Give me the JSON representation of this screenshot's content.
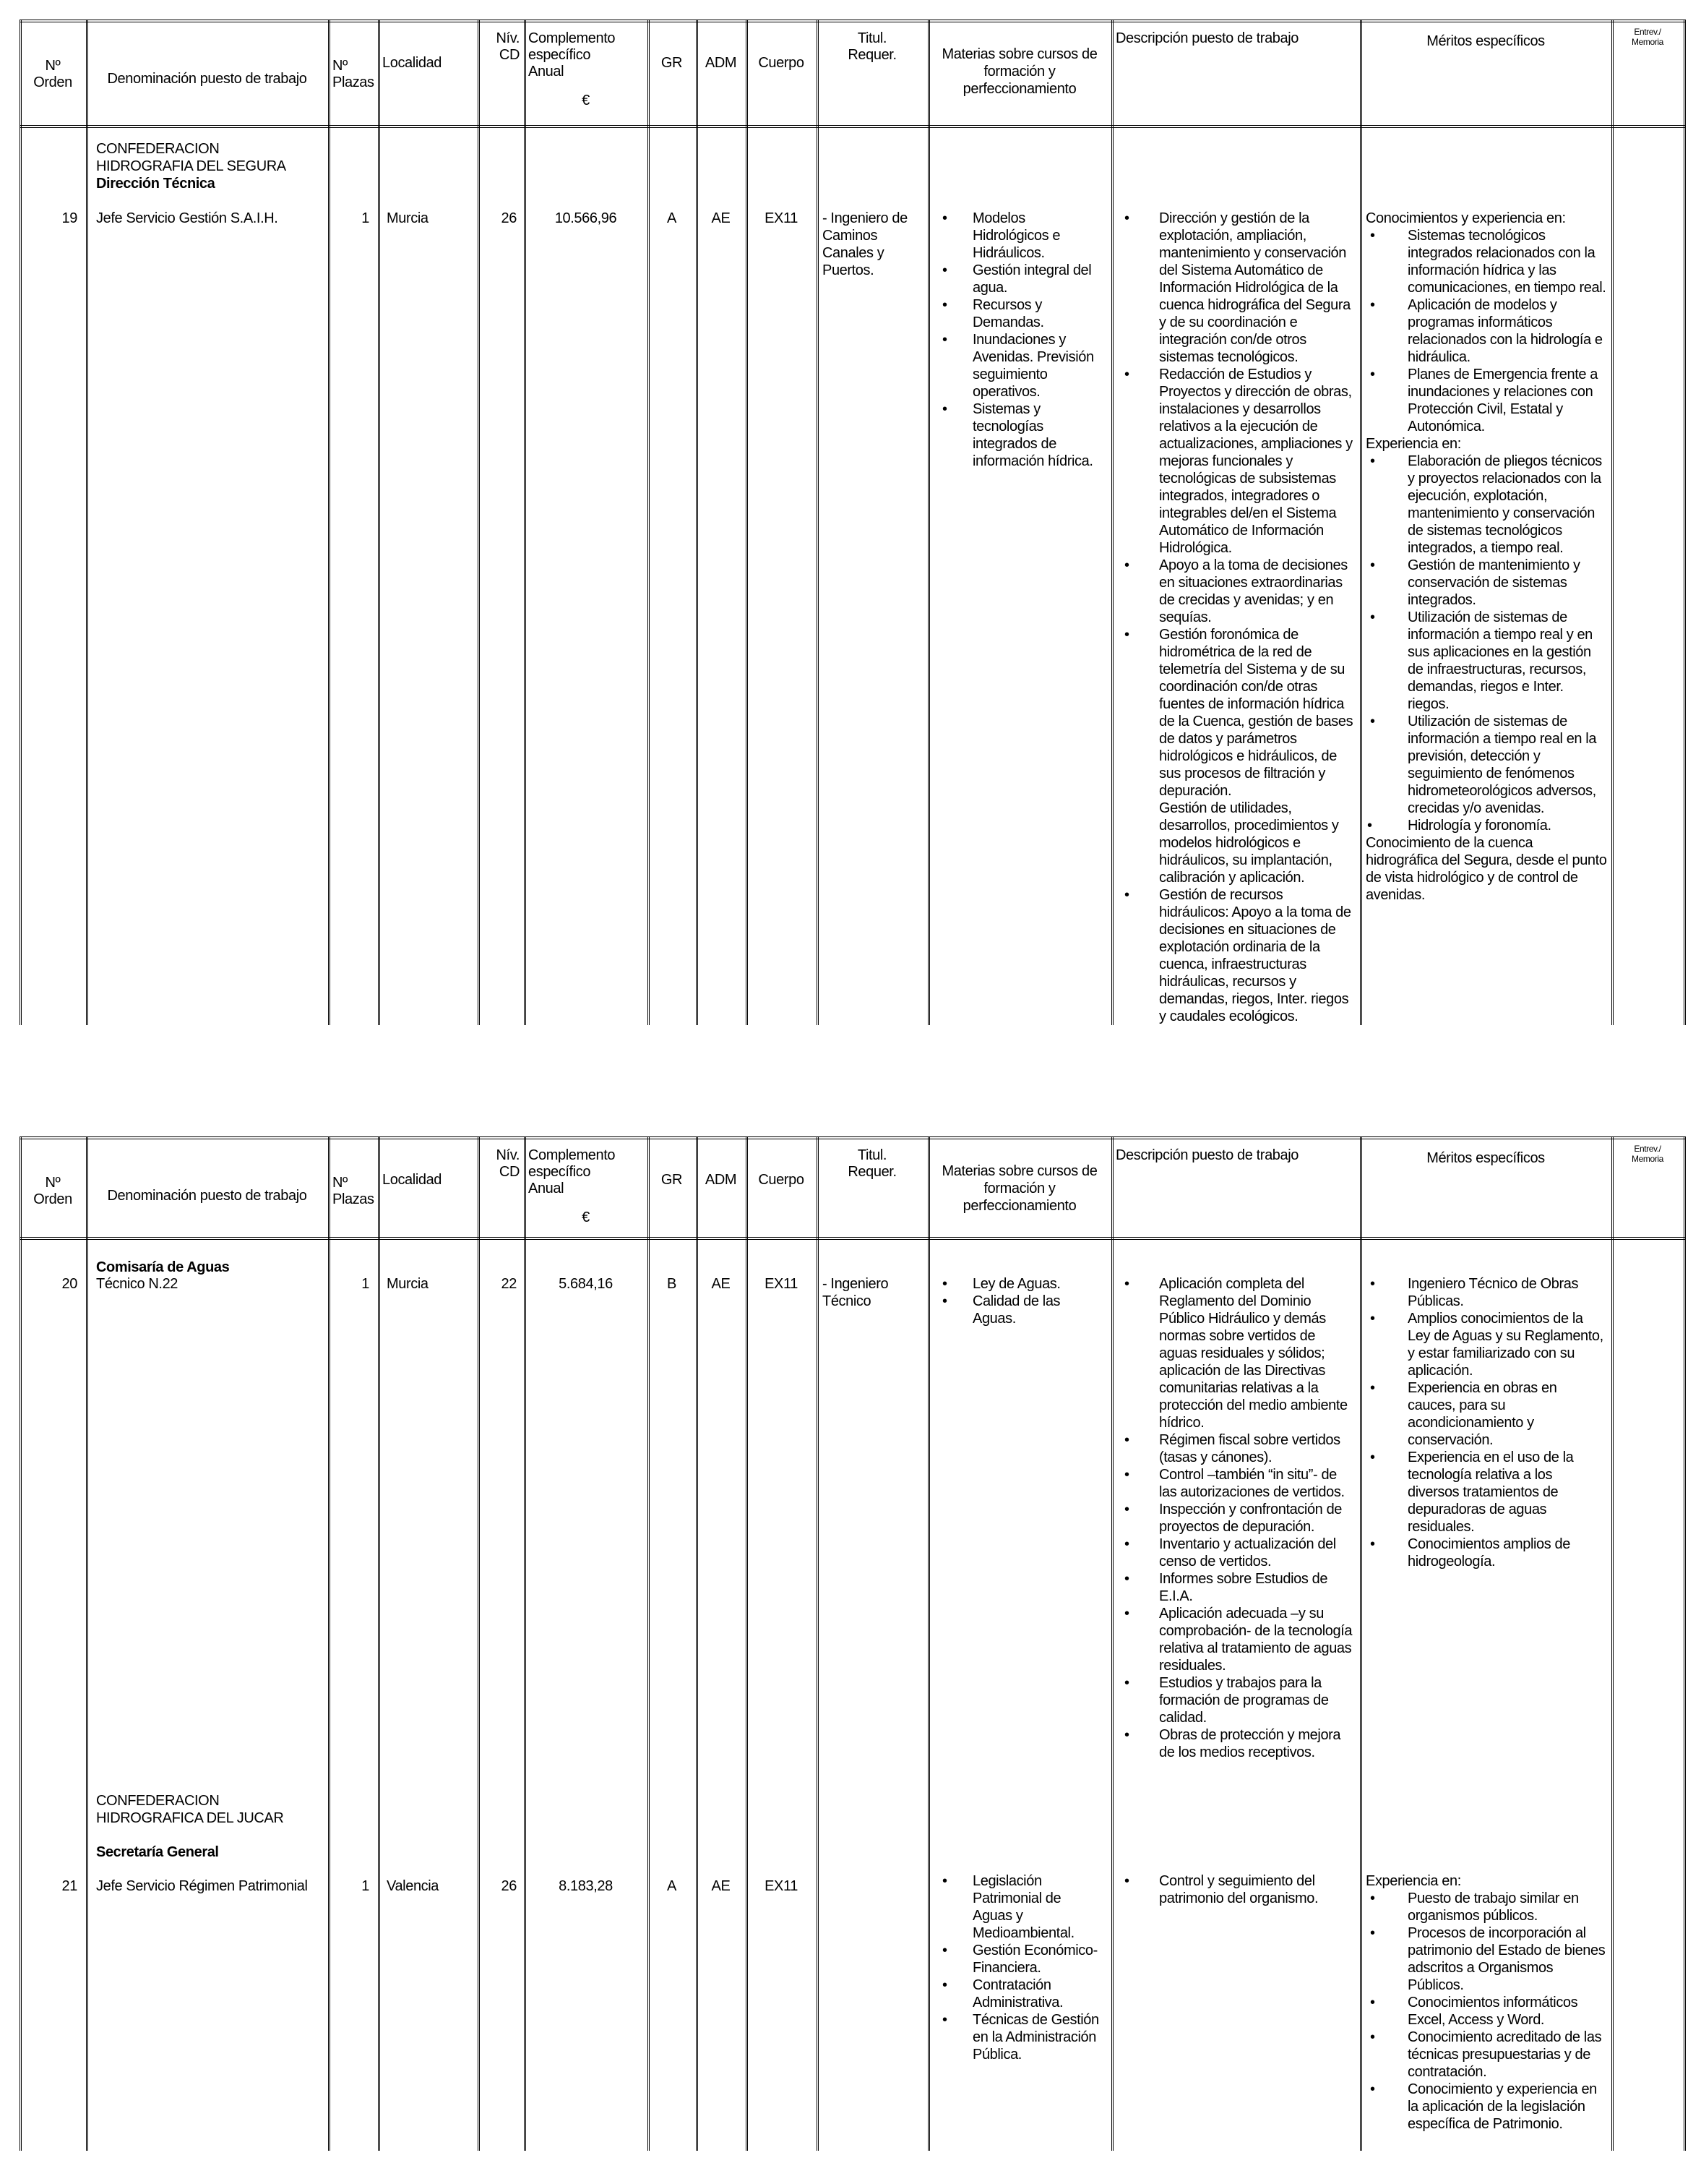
{
  "header": {
    "orden": [
      "Nº",
      "Orden"
    ],
    "denominacion": "Denominación puesto de trabajo",
    "plazas": [
      "Nº",
      "Plazas"
    ],
    "localidad": "Localidad",
    "nivel_cd": [
      "Nív.",
      "CD"
    ],
    "complemento": [
      "Complemento",
      "específico",
      "Anual"
    ],
    "complemento_unit": "€",
    "gr": "GR",
    "adm": "ADM",
    "cuerpo": "Cuerpo",
    "titulacion": [
      "Titul.",
      "Requer."
    ],
    "materias": "Materias sobre cursos de formación y perfeccionamiento",
    "descripcion": "Descripción puesto de trabajo",
    "meritos": "Méritos específicos",
    "entrevista": [
      "Entrev./",
      "Memoria"
    ]
  },
  "tables": [
    {
      "rows": [
        {
          "organization": [
            "CONFEDERACION",
            "HIDROGRAFIA DEL SEGURA"
          ],
          "unit": "Dirección Técnica",
          "orden": "19",
          "denominacion": "Jefe Servicio Gestión  S.A.I.H.",
          "plazas": "1",
          "localidad": "Murcia",
          "nivel_cd": "26",
          "complemento": "10.566,96",
          "gr": "A",
          "adm": "AE",
          "cuerpo": "EX11",
          "titulacion": "- Ingeniero de Caminos Canales y Puertos.",
          "materias": [
            {
              "type": "bullet",
              "text": "Modelos Hidrológicos e Hidráulicos."
            },
            {
              "type": "bullet",
              "text": "Gestión integral del agua."
            },
            {
              "type": "bullet",
              "text": "Recursos y Demandas."
            },
            {
              "type": "bullet",
              "text": "Inundaciones y Avenidas. Previsión seguimiento operativos."
            },
            {
              "type": "bullet",
              "text": "Sistemas y tecnologías integrados de información hídrica."
            }
          ],
          "descripcion": [
            {
              "type": "bullet",
              "text": "Dirección y gestión de la explotación, ampliación, mantenimiento y conservación del Sistema Automático de Información Hidrológica de la cuenca hidrográfica del Segura y de su coordinación e integración con/de otros sistemas tecnológicos."
            },
            {
              "type": "bullet",
              "text": "Redacción de Estudios y Proyectos y dirección de obras, instalaciones y desarrollos relativos a la ejecución de actualizaciones, ampliaciones y mejoras funcionales y tecnológicas de subsistemas integrados, integradores o integrables del/en el Sistema Automático de Información Hidrológica."
            },
            {
              "type": "bullet",
              "text": "Apoyo a la toma de decisiones en situaciones extraordinarias de crecidas y avenidas; y en sequías."
            },
            {
              "type": "bullet",
              "text": "Gestión foronómica de hidrométrica de la red de telemetría del Sistema y de su coordinación con/de otras fuentes de información hídrica de la Cuenca, gestión de bases de datos y parámetros hidrológicos e hidráulicos, de sus procesos de filtración y depuración."
            },
            {
              "type": "indent",
              "text": "Gestión de utilidades, desarrollos, procedimientos y modelos hidrológicos e hidráulicos, su implantación, calibración y aplicación."
            },
            {
              "type": "bullet",
              "text": "Gestión de recursos hidráulicos: Apoyo a la toma de decisiones en situaciones de explotación ordinaria de la cuenca, infraestructuras hidráulicas, recursos y demandas, riegos, Inter. riegos y caudales ecológicos."
            }
          ],
          "meritos": [
            {
              "type": "text",
              "text": "Conocimientos y experiencia en:"
            },
            {
              "type": "bullet",
              "text": "Sistemas tecnológicos integrados relacionados con la información hídrica y las comunicaciones, en tiempo real."
            },
            {
              "type": "bullet",
              "text": "Aplicación de modelos y programas informáticos relacionados con la hidrología e hidráulica."
            },
            {
              "type": "bullet",
              "text": "Planes de Emergencia frente a inundaciones y relaciones con Protección Civil, Estatal y Autonómica."
            },
            {
              "type": "text",
              "text": "Experiencia en:"
            },
            {
              "type": "bullet",
              "text": "Elaboración de pliegos técnicos y proyectos relacionados con la ejecución, explotación, mantenimiento y conservación de sistemas tecnológicos integrados, a tiempo real."
            },
            {
              "type": "bullet",
              "text": "Gestión de mantenimiento y conservación de sistemas integrados."
            },
            {
              "type": "bullet",
              "text": "Utilización de sistemas de información a tiempo real y en sus aplicaciones en la gestión de infraestructuras, recursos, demandas, riegos e Inter. riegos."
            },
            {
              "type": "bullet",
              "text": "Utilización de sistemas de información a tiempo real en la previsión, detección y seguimiento de fenómenos hidrometeorológicos adversos, crecidas y/o avenidas."
            },
            {
              "type": "bullet",
              "text": "Hidrología y foronomía."
            },
            {
              "type": "text",
              "text": "Conocimiento de la cuenca hidrográfica del Segura, desde el punto de vista hidrológico y de control de avenidas."
            }
          ]
        }
      ]
    },
    {
      "rows": [
        {
          "unit": "Comisaría de Aguas",
          "orden": "20",
          "denominacion": "Técnico N.22",
          "plazas": "1",
          "localidad": "Murcia",
          "nivel_cd": "22",
          "complemento": "5.684,16",
          "gr": "B",
          "adm": "AE",
          "cuerpo": "EX11",
          "titulacion": "- Ingeniero Técnico",
          "materias": [
            {
              "type": "bullet",
              "text": "Ley de Aguas."
            },
            {
              "type": "bullet",
              "text": "Calidad de las Aguas."
            }
          ],
          "descripcion": [
            {
              "type": "bullet",
              "text": "Aplicación completa del Reglamento del Dominio Público Hidráulico y demás normas sobre vertidos de aguas residuales y sólidos; aplicación de las Directivas comunitarias relativas a la protección del medio ambiente hídrico."
            },
            {
              "type": "bullet",
              "text": "Régimen fiscal sobre vertidos (tasas y cánones)."
            },
            {
              "type": "bullet",
              "text": "Control –también “in situ”- de las autorizaciones de vertidos."
            },
            {
              "type": "bullet",
              "text": "Inspección y confrontación de proyectos de depuración."
            },
            {
              "type": "bullet",
              "text": "Inventario y actualización del censo de vertidos."
            },
            {
              "type": "bullet",
              "text": "Informes sobre Estudios de E.I.A."
            },
            {
              "type": "bullet",
              "text": "Aplicación adecuada –y su comprobación- de la tecnología relativa al tratamiento de aguas residuales."
            },
            {
              "type": "bullet",
              "text": "Estudios y trabajos para la formación de programas de calidad."
            },
            {
              "type": "bullet",
              "text": "Obras de protección y mejora de los medios receptivos."
            }
          ],
          "meritos": [
            {
              "type": "bullet",
              "text": "Ingeniero Técnico de Obras Públicas."
            },
            {
              "type": "bullet",
              "text": "Amplios conocimientos de la Ley de Aguas y su Reglamento, y estar familiarizado con su aplicación."
            },
            {
              "type": "bullet",
              "text": "Experiencia en obras en cauces, para su acondicionamiento y conservación."
            },
            {
              "type": "bullet",
              "text": "Experiencia en el uso de la tecnología relativa a los diversos tratamientos de depuradoras de aguas residuales."
            },
            {
              "type": "bullet",
              "text": "Conocimientos amplios de hidrogeología."
            }
          ]
        },
        {
          "organization": [
            "CONFEDERACION",
            "HIDROGRAFICA DEL JUCAR"
          ],
          "unit": "Secretaría General",
          "orden": "21",
          "denominacion": "Jefe Servicio Régimen Patrimonial",
          "plazas": "1",
          "localidad": "Valencia",
          "nivel_cd": "26",
          "complemento": "8.183,28",
          "gr": "A",
          "adm": "AE",
          "cuerpo": "EX11",
          "titulacion": "",
          "materias": [
            {
              "type": "bullet",
              "text": "Legislación Patrimonial de Aguas y Medioambiental."
            },
            {
              "type": "bullet",
              "text": "Gestión Económico-Financiera."
            },
            {
              "type": "bullet",
              "text": "Contratación Administrativa."
            },
            {
              "type": "bullet",
              "text": "Técnicas de Gestión en la Administración Pública."
            }
          ],
          "descripcion": [
            {
              "type": "bullet",
              "text": "Control y seguimiento del patrimonio del organismo."
            }
          ],
          "meritos": [
            {
              "type": "text",
              "text": "Experiencia en:"
            },
            {
              "type": "bullet",
              "text": "Puesto de trabajo similar en organismos públicos."
            },
            {
              "type": "bullet",
              "text": "Procesos de incorporación al patrimonio del Estado de bienes adscritos a Organismos Públicos."
            },
            {
              "type": "bullet",
              "text": "Conocimientos informáticos Excel, Access y Word."
            },
            {
              "type": "bullet",
              "text": "Conocimiento acreditado de las técnicas presupuestarias y de contratación."
            },
            {
              "type": "bullet",
              "text": "Conocimiento y experiencia en la aplicación de la legislación específica de Patrimonio."
            }
          ]
        }
      ]
    }
  ]
}
